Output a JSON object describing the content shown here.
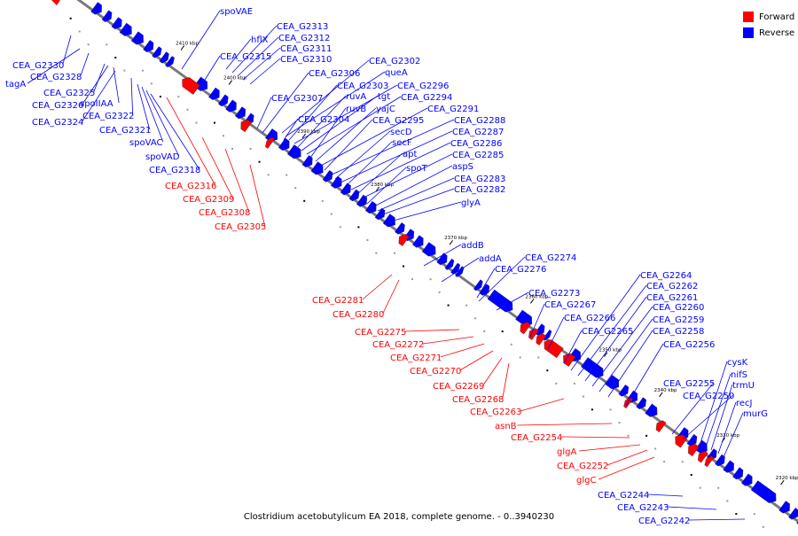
{
  "caption": "Clostridium acetobutylicum EA 2018, complete genome. - 0..3940230",
  "legend": [
    {
      "label": "Forward",
      "color": "#ff0000"
    },
    {
      "label": "Reverse",
      "color": "#0000ff"
    }
  ],
  "colors": {
    "forward": "#ff0000",
    "reverse": "#0000ff",
    "backbone": "#808080"
  },
  "ticks": [
    "2410 kbp",
    "2400 kbp",
    "2390 kbp",
    "2380 kbp",
    "2370 kbp",
    "2360 kbp",
    "2350 kbp",
    "2340 kbp",
    "2330 kbp",
    "2320 kbp"
  ],
  "labels_reverse": [
    "spoVAE",
    "hflX",
    "CEA_G2313",
    "CEA_G2312",
    "CEA_G2311",
    "CEA_G2315",
    "CEA_G2310",
    "CEA_G2330",
    "CEA_G2328",
    "tagA",
    "CEA_G2325",
    "CEA_G2326",
    "spoIIAA",
    "CEA_G2324",
    "CEA_G2322",
    "CEA_G2321",
    "spoVAC",
    "spoVAD",
    "CEA_G2318",
    "CEA_G2302",
    "CEA_G2306",
    "queA",
    "CEA_G2303",
    "CEA_G2296",
    "CEA_G2307",
    "ruvA",
    "tgt",
    "CEA_G2294",
    "ruvB",
    "yajC",
    "CEA_G2291",
    "CEA_G2304",
    "CEA_G2295",
    "CEA_G2288",
    "secD",
    "CEA_G2287",
    "secF",
    "CEA_G2286",
    "apt",
    "CEA_G2285",
    "spoT",
    "aspS",
    "CEA_G2283",
    "CEA_G2282",
    "glyA",
    "addB",
    "addA",
    "CEA_G2274",
    "CEA_G2276",
    "CEA_G2273",
    "CEA_G2267",
    "CEA_G2266",
    "CEA_G2265",
    "CEA_G2264",
    "CEA_G2262",
    "CEA_G2261",
    "CEA_G2260",
    "CEA_G2259",
    "CEA_G2258",
    "CEA_G2256",
    "cysK",
    "nifS",
    "CEA_G2255",
    "trmU",
    "CEA_G2250",
    "recJ",
    "murG",
    "CEA_G2244",
    "CEA_G2243",
    "CEA_G2242"
  ],
  "labels_forward": [
    "CEA_G2316",
    "CEA_G2309",
    "CEA_G2308",
    "CEA_G2305",
    "CEA_G2281",
    "CEA_G2280",
    "CEA_G2275",
    "CEA_G2272",
    "CEA_G2271",
    "CEA_G2270",
    "CEA_G2269",
    "CEA_G2268",
    "CEA_G2263",
    "asnB",
    "CEA_G2254",
    "glgA",
    "CEA_G2252",
    "glgC"
  ]
}
